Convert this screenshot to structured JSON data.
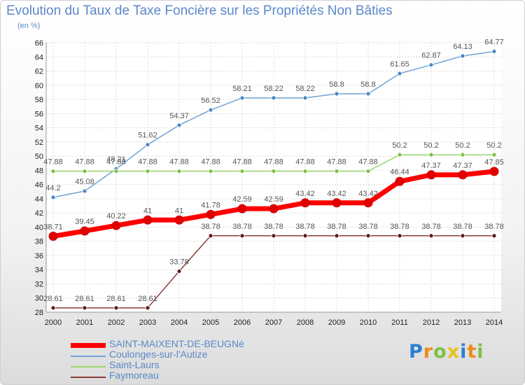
{
  "chart_data": {
    "type": "line",
    "title": "Evolution du Taux de Taxe Foncière sur les Propriétés Non Bâties",
    "unit_label": "(en %)",
    "x": [
      "2000",
      "2001",
      "2002",
      "2003",
      "2004",
      "2005",
      "2006",
      "2007",
      "2008",
      "2009",
      "2010",
      "2011",
      "2012",
      "2013",
      "2014"
    ],
    "ylim": [
      28,
      66
    ],
    "y_ticks": [
      28,
      30,
      32,
      34,
      36,
      38,
      40,
      42,
      44,
      46,
      48,
      50,
      52,
      54,
      56,
      58,
      60,
      62,
      64,
      66
    ],
    "grid": true,
    "legend_position": "bottom-left",
    "series": [
      {
        "name": "Coulonges-sur-l'Autize",
        "color": "#6fa3d6",
        "marker": "#4a86c5",
        "values": [
          44.2,
          45.08,
          48.21,
          51.62,
          54.37,
          56.52,
          58.21,
          58.22,
          58.22,
          58.8,
          58.8,
          61.65,
          62.87,
          64.13,
          64.77
        ],
        "labels": [
          "44.2",
          "45.08",
          "48.21",
          "51.62",
          "54.37",
          "56.52",
          "58.21",
          "58.22",
          "58.22",
          "58.8",
          "58.8",
          "61.65",
          "62.87",
          "64.13",
          "64.77"
        ]
      },
      {
        "name": "Saint-Laurs",
        "color": "#9ed66f",
        "marker": "#7bc142",
        "values": [
          47.88,
          47.88,
          47.88,
          47.88,
          47.88,
          47.88,
          47.88,
          47.88,
          47.88,
          47.88,
          47.88,
          50.2,
          50.2,
          50.2,
          50.2
        ],
        "labels": [
          "47.88",
          "47.88",
          "47.88",
          "47.88",
          "47.88",
          "47.88",
          "47.88",
          "47.88",
          "47.88",
          "47.88",
          "47.88",
          "50.2",
          "50.2",
          "50.2",
          "50.2"
        ]
      },
      {
        "name": "Faymoreau",
        "color": "#8b3a3a",
        "marker": "#5e1a1a",
        "values": [
          28.61,
          28.61,
          28.61,
          28.61,
          33.78,
          38.78,
          38.78,
          38.78,
          38.78,
          38.78,
          38.78,
          38.78,
          38.78,
          38.78,
          38.78
        ],
        "labels": [
          "28.61",
          "28.61",
          "28.61",
          "28.61",
          "33.78",
          "38.78",
          "38.78",
          "38.78",
          "38.78",
          "38.78",
          "38.78",
          "38.78",
          "38.78",
          "38.78",
          "38.78"
        ]
      },
      {
        "name": "SAINT-MAIXENT-DE-BEUGNé",
        "color": "#ff0000",
        "marker": "#e00000",
        "values": [
          38.71,
          39.45,
          40.22,
          41,
          41,
          41.78,
          42.59,
          42.59,
          43.42,
          43.42,
          43.42,
          46.44,
          47.37,
          47.37,
          47.85
        ],
        "labels": [
          "38.71",
          "39.45",
          "40.22",
          "41",
          "41",
          "41.78",
          "42.59",
          "42.59",
          "43.42",
          "43.42",
          "43.42",
          "46.44",
          "47.37",
          "47.37",
          "47.85"
        ]
      }
    ]
  },
  "legend": [
    {
      "label": "SAINT-MAIXENT-DE-BEUGNé",
      "color": "#ff0000",
      "thick": true
    },
    {
      "label": "Coulonges-sur-l'Autize",
      "color": "#6fa3d6",
      "thick": false
    },
    {
      "label": "Saint-Laurs",
      "color": "#9ed66f",
      "thick": false
    },
    {
      "label": "Faymoreau",
      "color": "#8b3a3a",
      "thick": false
    }
  ],
  "logo": {
    "letters": [
      "P",
      "r",
      "o",
      "x",
      "i",
      "t",
      "i"
    ],
    "colors": [
      "#2a7fd0",
      "#f08a1c",
      "#7bc142",
      "#e8c21c",
      "#2a7fd0",
      "#f08a1c",
      "#7bc142"
    ]
  }
}
